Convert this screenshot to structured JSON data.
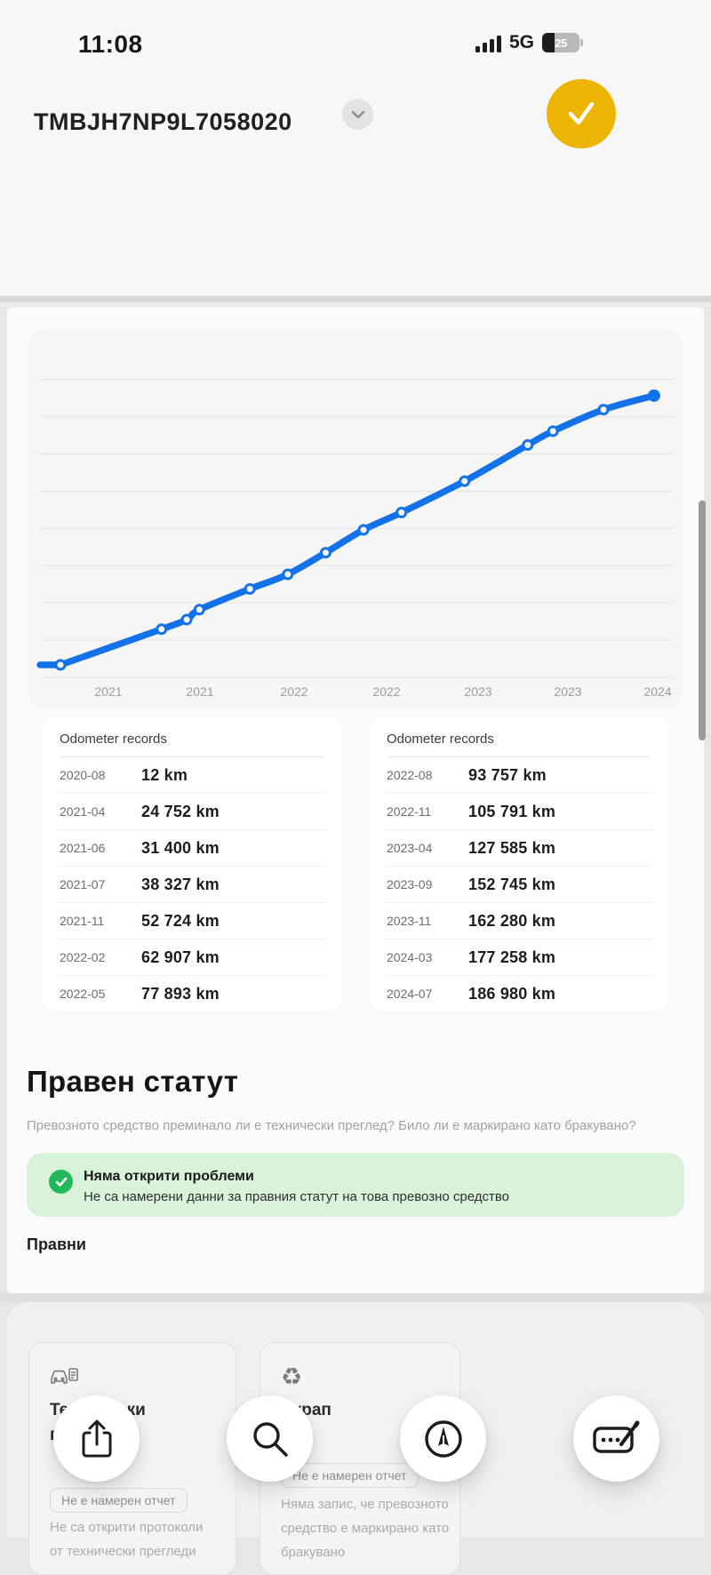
{
  "status_bar": {
    "time": "11:08",
    "network": "5G",
    "battery_percent": "25"
  },
  "header": {
    "vin": "TMBJH7NP9L7058020"
  },
  "colors": {
    "accent_blue": "#1472e8",
    "confirm_yellow": "#eeb404",
    "success_green": "#23b85b",
    "success_bg": "#d8f3da"
  },
  "chart_data": {
    "type": "line",
    "title": "",
    "xlabel": "",
    "ylabel": "",
    "grid": "horizontal",
    "legend": "none",
    "line_color": "#1472e8",
    "x_tick_labels": [
      "2021",
      "2021",
      "2022",
      "2022",
      "2023",
      "2023",
      "2024"
    ],
    "ylim": [
      0,
      200000
    ],
    "series": [
      {
        "name": "Odometer (km)",
        "x": [
          "2020-08",
          "2021-04",
          "2021-06",
          "2021-07",
          "2021-11",
          "2022-02",
          "2022-05",
          "2022-08",
          "2022-11",
          "2023-04",
          "2023-09",
          "2023-11",
          "2024-03",
          "2024-07"
        ],
        "values": [
          12,
          24752,
          31400,
          38327,
          52724,
          62907,
          77893,
          93757,
          105791,
          127585,
          152745,
          162280,
          177258,
          186980
        ]
      }
    ]
  },
  "tables": {
    "left": {
      "title": "Odometer records",
      "rows": [
        {
          "date": "2020-08",
          "value": "12 km"
        },
        {
          "date": "2021-04",
          "value": "24 752 km"
        },
        {
          "date": "2021-06",
          "value": "31 400 km"
        },
        {
          "date": "2021-07",
          "value": "38 327 km"
        },
        {
          "date": "2021-11",
          "value": "52 724 km"
        },
        {
          "date": "2022-02",
          "value": "62 907 km"
        },
        {
          "date": "2022-05",
          "value": "77 893 km"
        }
      ]
    },
    "right": {
      "title": "Odometer records",
      "rows": [
        {
          "date": "2022-08",
          "value": "93 757 km"
        },
        {
          "date": "2022-11",
          "value": "105 791 km"
        },
        {
          "date": "2023-04",
          "value": "127 585 km"
        },
        {
          "date": "2023-09",
          "value": "152 745 km"
        },
        {
          "date": "2023-11",
          "value": "162 280 km"
        },
        {
          "date": "2024-03",
          "value": "177 258 km"
        },
        {
          "date": "2024-07",
          "value": "186 980 km"
        }
      ]
    }
  },
  "legal": {
    "title": "Правен статут",
    "subtitle": "Превозното средство преминало ли е технически преглед? Било ли е маркирано като бракувано?",
    "alert_title": "Няма открити проблеми",
    "alert_text": "Не са намерени данни за правния статут на това превозно средство",
    "subsection": "Правни"
  },
  "bottom_cards": {
    "inspections": {
      "title": "Технически прегледи",
      "chip": "Не е намерен отчет",
      "text": "Не са открити протоколи от технически прегледи",
      "icon": "car-inspection-icon"
    },
    "scrap": {
      "title": "Скрап",
      "chip": "Не е намерен отчет",
      "text": "Няма запис, че превозното средство е маркирано като бракувано",
      "icon": "recycle-icon"
    }
  },
  "toolbar": {
    "buttons": [
      "share",
      "search",
      "compass",
      "compose"
    ]
  }
}
